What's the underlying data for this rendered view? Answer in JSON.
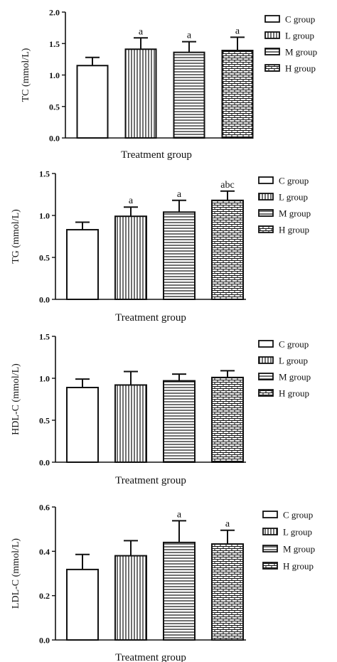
{
  "legend_labels": [
    "C group",
    "L group",
    "M group",
    "H group"
  ],
  "patterns": [
    "blank",
    "vertical-lines",
    "horizontal-lines",
    "brick"
  ],
  "colors": {
    "ink": "#111111",
    "background": "#ffffff"
  },
  "chart_data": [
    {
      "type": "bar",
      "categories": [
        "C group",
        "L group",
        "M group",
        "H group"
      ],
      "series": [
        {
          "values": [
            1.15,
            1.41,
            1.36,
            1.39
          ],
          "errors": [
            0.13,
            0.18,
            0.17,
            0.21
          ]
        }
      ],
      "significance": [
        "",
        "a",
        "a",
        "a"
      ],
      "ylabel": "TC (mmol/L)",
      "xlabel": "Treatment group",
      "ylim": [
        0,
        2.0
      ],
      "yticks": [
        "0.0",
        "0.5",
        "1.0",
        "1.5",
        "2.0"
      ],
      "legend_position": "right"
    },
    {
      "type": "bar",
      "categories": [
        "C group",
        "L group",
        "M group",
        "H group"
      ],
      "series": [
        {
          "values": [
            0.83,
            0.99,
            1.04,
            1.18
          ],
          "errors": [
            0.09,
            0.11,
            0.14,
            0.11
          ]
        }
      ],
      "significance": [
        "",
        "a",
        "a",
        "abc"
      ],
      "ylabel": "TG (mmol/L)",
      "xlabel": "Treatment group",
      "ylim": [
        0,
        1.5
      ],
      "yticks": [
        "0.0",
        "0.5",
        "1.0",
        "1.5"
      ],
      "legend_position": "right"
    },
    {
      "type": "bar",
      "categories": [
        "C group",
        "L group",
        "M group",
        "H group"
      ],
      "series": [
        {
          "values": [
            0.89,
            0.92,
            0.97,
            1.01
          ],
          "errors": [
            0.1,
            0.16,
            0.08,
            0.08
          ]
        }
      ],
      "significance": [
        "",
        "",
        "",
        ""
      ],
      "ylabel": "HDL-C (mmol/L)",
      "xlabel": "Treatment group",
      "ylim": [
        0,
        1.5
      ],
      "yticks": [
        "0.0",
        "0.5",
        "1.0",
        "1.5"
      ],
      "legend_position": "right"
    },
    {
      "type": "bar",
      "categories": [
        "C group",
        "L group",
        "M group",
        "H group"
      ],
      "series": [
        {
          "values": [
            0.318,
            0.38,
            0.44,
            0.433
          ],
          "errors": [
            0.068,
            0.068,
            0.098,
            0.062
          ]
        }
      ],
      "significance": [
        "",
        "",
        "a",
        "a"
      ],
      "ylabel": "LDL-C (mmol/L)",
      "xlabel": "Treatment group",
      "ylim": [
        0,
        0.6
      ],
      "yticks": [
        "0.0",
        "0.2",
        "0.4",
        "0.6"
      ],
      "legend_position": "right"
    }
  ]
}
